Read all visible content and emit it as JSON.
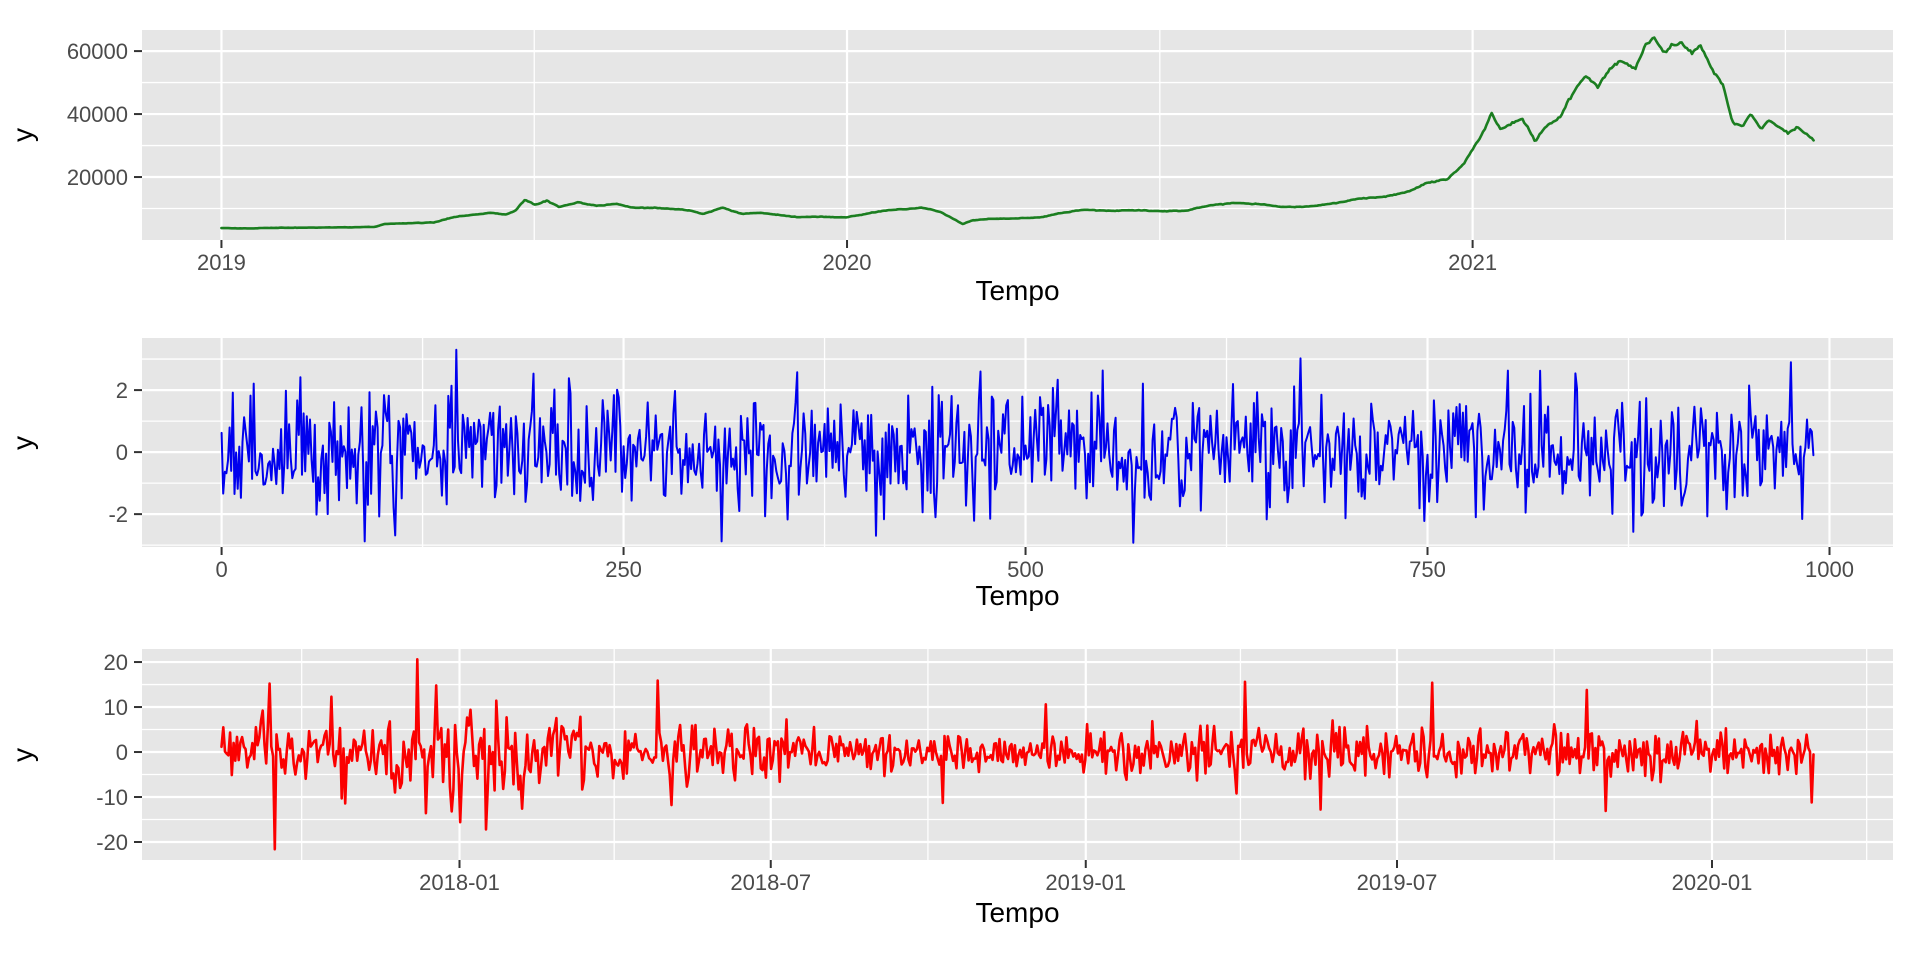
{
  "page": {
    "background": "#ffffff",
    "panel_background": "#e6e6e6",
    "grid_color": "#ffffff",
    "tick_mark_color": "#333333",
    "tick_label_color": "#4b4b4b",
    "axis_title_color": "#000000"
  },
  "chart_data": [
    {
      "type": "line",
      "name": "price-series-chart",
      "title": "",
      "xlabel": "Tempo",
      "ylabel": "y",
      "line_color": "#1b7e20",
      "legend": "none",
      "grid": true,
      "xlim": [
        2018.873,
        2021.672
      ],
      "ylim": [
        0,
        66700
      ],
      "x_tick_values": [
        2019,
        2020,
        2021
      ],
      "x_tick_labels": [
        "2019",
        "2020",
        "2021"
      ],
      "x_minor_ticks": [
        2019.5,
        2020.5,
        2021.5
      ],
      "y_tick_values": [
        20000,
        40000,
        60000
      ],
      "y_tick_labels": [
        "20000",
        "40000",
        "60000"
      ],
      "y_minor_ticks": [
        10000,
        30000,
        50000
      ],
      "series": {
        "mode": "anchors",
        "n": 931,
        "x_start": 2019.0,
        "x_end": 2021.545,
        "jitter_sd": 0.009,
        "seed": 11,
        "anchors_x": [
          2019.0,
          2019.04,
          2019.08,
          2019.12,
          2019.16,
          2019.21,
          2019.245,
          2019.26,
          2019.3,
          2019.34,
          2019.37,
          2019.4,
          2019.43,
          2019.455,
          2019.47,
          2019.485,
          2019.5,
          2019.52,
          2019.54,
          2019.57,
          2019.6,
          2019.63,
          2019.66,
          2019.69,
          2019.72,
          2019.745,
          2019.77,
          2019.8,
          2019.83,
          2019.86,
          2019.89,
          2019.92,
          2019.95,
          2019.98,
          2020.0,
          2020.03,
          2020.06,
          2020.09,
          2020.12,
          2020.15,
          2020.185,
          2020.2,
          2020.23,
          2020.27,
          2020.31,
          2020.35,
          2020.38,
          2020.42,
          2020.46,
          2020.5,
          2020.54,
          2020.58,
          2020.62,
          2020.66,
          2020.7,
          2020.74,
          2020.78,
          2020.82,
          2020.86,
          2020.9,
          2020.93,
          2020.96,
          2020.985,
          2021.0,
          2021.015,
          2021.03,
          2021.045,
          2021.06,
          2021.08,
          2021.1,
          2021.12,
          2021.14,
          2021.16,
          2021.18,
          2021.2,
          2021.22,
          2021.24,
          2021.26,
          2021.275,
          2021.29,
          2021.305,
          2021.32,
          2021.335,
          2021.35,
          2021.365,
          2021.38,
          2021.4,
          2021.415,
          2021.43,
          2021.445,
          2021.46,
          2021.475,
          2021.49,
          2021.505,
          2021.52,
          2021.535,
          2021.545
        ],
        "anchors_y": [
          3740,
          3680,
          3850,
          3900,
          3960,
          4050,
          4130,
          5060,
          5350,
          5600,
          7250,
          7950,
          8600,
          8100,
          9300,
          12900,
          11200,
          12400,
          10600,
          11900,
          10800,
          11500,
          10200,
          10250,
          9900,
          9550,
          8250,
          10300,
          8350,
          8650,
          8050,
          7250,
          7450,
          7220,
          7200,
          8300,
          9350,
          9850,
          10250,
          8900,
          5050,
          6250,
          6750,
          6850,
          7150,
          8850,
          9650,
          9300,
          9450,
          9150,
          9250,
          11050,
          11750,
          11400,
          10450,
          10700,
          11600,
          13150,
          13700,
          15500,
          18300,
          19400,
          23800,
          29100,
          33500,
          40200,
          35300,
          36900,
          38500,
          31800,
          36600,
          39200,
          46400,
          52100,
          48900,
          54300,
          57400,
          54200,
          61200,
          64300,
          59800,
          61900,
          63400,
          58900,
          61500,
          55300,
          49500,
          37500,
          36100,
          39800,
          35700,
          38200,
          35600,
          34100,
          35900,
          33500,
          31400
        ]
      },
      "summary": {
        "min": 3400,
        "max": 64500,
        "start_value": 3740,
        "end_value": 31000
      }
    },
    {
      "type": "line",
      "name": "white-noise-chart",
      "title": "",
      "xlabel": "Tempo",
      "ylabel": "y",
      "line_color": "#0000ee",
      "legend": "none",
      "grid": true,
      "xlim": [
        -49.5,
        1039.5
      ],
      "ylim": [
        -3.06,
        3.68
      ],
      "x_tick_values": [
        0,
        250,
        500,
        750,
        1000
      ],
      "x_tick_labels": [
        "0",
        "250",
        "500",
        "750",
        "1000"
      ],
      "x_minor_ticks": [
        125,
        375,
        625,
        875
      ],
      "y_tick_values": [
        -2,
        0,
        2
      ],
      "y_tick_labels": [
        "-2",
        "0",
        "2"
      ],
      "y_minor_ticks": [
        -3,
        -1,
        1,
        3
      ],
      "series": {
        "mode": "noise",
        "n": 991,
        "x_start": 0,
        "x_end": 990,
        "seed": 22,
        "sd_segments": [
          [
            0,
            991,
            1.0
          ]
        ],
        "clip": [
          -2.88,
          3.3
        ],
        "spikes": [
          [
            146,
            3.3
          ],
          [
            567,
            -2.92
          ],
          [
            976,
            2.9
          ]
        ]
      },
      "summary": {
        "mean": 0,
        "sd": 1,
        "min": -2.9,
        "max": 3.3
      }
    },
    {
      "type": "line",
      "name": "daily-returns-chart",
      "title": "",
      "xlabel": "Tempo",
      "ylabel": "y",
      "line_color": "#fb0000",
      "legend": "none",
      "grid": true,
      "xlim": [
        2017.493,
        2020.289
      ],
      "ylim": [
        -24,
        22.9
      ],
      "x_tick_values": [
        2018.0,
        2018.497,
        2019.0,
        2019.497,
        2020.0
      ],
      "x_tick_labels": [
        "2018-01",
        "2018-07",
        "2019-01",
        "2019-07",
        "2020-01"
      ],
      "x_minor_ticks": [
        2017.748,
        2018.247,
        2018.748,
        2019.247,
        2019.748,
        2020.247
      ],
      "y_tick_values": [
        -20,
        -10,
        0,
        10,
        20
      ],
      "y_tick_labels": [
        "-20",
        "-10",
        "0",
        "10",
        "20"
      ],
      "y_minor_ticks": [
        -15,
        -5,
        5,
        15
      ],
      "series": {
        "mode": "noise",
        "n": 928,
        "x_start": 2017.62,
        "x_end": 2020.162,
        "seed": 33,
        "sd_segments": [
          [
            0,
            60,
            3.3
          ],
          [
            60,
            200,
            4.3
          ],
          [
            200,
            330,
            3.3
          ],
          [
            330,
            520,
            2.3
          ],
          [
            520,
            640,
            2.9
          ],
          [
            640,
            760,
            3.1
          ],
          [
            760,
            870,
            2.9
          ],
          [
            870,
            928,
            2.5
          ]
        ],
        "clip": [
          -13.2,
          13.2
        ],
        "spikes": [
          [
            24,
            9.2
          ],
          [
            28,
            15.2
          ],
          [
            31,
            -21.6
          ],
          [
            64,
            12.3
          ],
          [
            114,
            20.6
          ],
          [
            119,
            -13.6
          ],
          [
            125,
            14.8
          ],
          [
            139,
            -15.6
          ],
          [
            154,
            -17.2
          ],
          [
            160,
            11.4
          ],
          [
            175,
            -12.6
          ],
          [
            254,
            15.9
          ],
          [
            262,
            -11.8
          ],
          [
            420,
            -11.3
          ],
          [
            480,
            10.6
          ],
          [
            596,
            15.6
          ],
          [
            640,
            -12.8
          ],
          [
            705,
            15.4
          ],
          [
            795,
            13.8
          ],
          [
            806,
            -13.1
          ],
          [
            926,
            -11.2
          ]
        ]
      },
      "summary": {
        "mean": 0,
        "min": -21.6,
        "max": 20.6
      }
    }
  ]
}
